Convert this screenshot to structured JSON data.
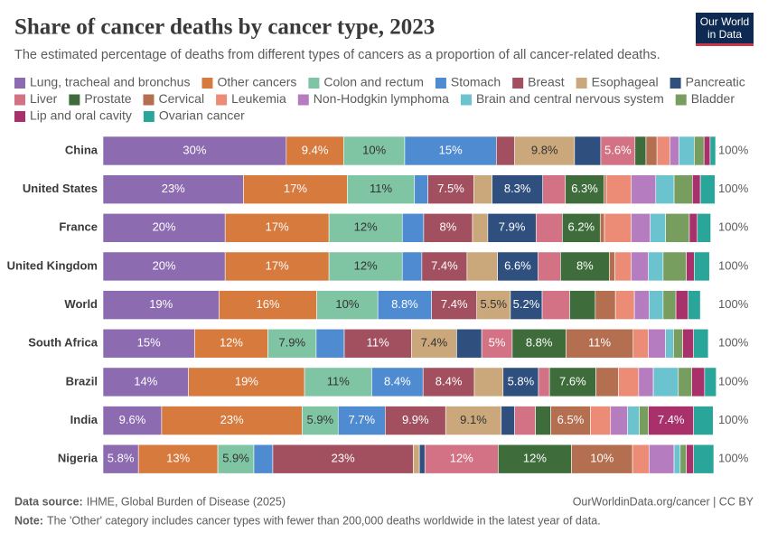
{
  "chart_data": {
    "type": "stacked-bar-100",
    "title": "Share of cancer deaths by cancer type, 2023",
    "subtitle": "The estimated percentage of deaths from different types of cancers as a proportion of all cancer-related deaths.",
    "logo": [
      "Our World",
      "in Data"
    ],
    "categories": [
      "China",
      "United States",
      "France",
      "United Kingdom",
      "World",
      "South Africa",
      "Brazil",
      "India",
      "Nigeria"
    ],
    "total_labels": [
      "100%",
      "100%",
      "100%",
      "100%",
      "100%",
      "100%",
      "100%",
      "100%",
      "100%"
    ],
    "xlim": [
      0,
      100
    ],
    "series": [
      {
        "name": "Lung, tracheal and bronchus",
        "color": "#8c6bb1",
        "values": [
          30,
          23,
          20,
          20,
          19,
          15,
          14,
          9.6,
          5.8
        ],
        "value_labels": [
          "30%",
          "23%",
          "20%",
          "20%",
          "19%",
          "15%",
          "14%",
          "9.6%",
          "5.8%"
        ]
      },
      {
        "name": "Other cancers",
        "color": "#d67a3e",
        "values": [
          9.4,
          17,
          17,
          17,
          16,
          12,
          19,
          23,
          13
        ],
        "value_labels": [
          "9.4%",
          "17%",
          "17%",
          "17%",
          "16%",
          "12%",
          "19%",
          "23%",
          "13%"
        ]
      },
      {
        "name": "Colon and rectum",
        "color": "#7fc4a3",
        "values": [
          10,
          11,
          12,
          12,
          10,
          7.9,
          11,
          5.9,
          5.9
        ],
        "value_labels": [
          "10%",
          "11%",
          "12%",
          "12%",
          "10%",
          "7.9%",
          "11%",
          "5.9%",
          "5.9%"
        ]
      },
      {
        "name": "Stomach",
        "color": "#4f8bd0",
        "values": [
          15,
          2.2,
          3.5,
          3.2,
          8.8,
          4.6,
          8.4,
          7.7,
          3.1
        ],
        "value_labels": [
          "15%",
          null,
          null,
          null,
          "8.8%",
          null,
          "8.4%",
          "7.7%",
          null
        ]
      },
      {
        "name": "Breast",
        "color": "#a2505f",
        "values": [
          3,
          7.5,
          8,
          7.4,
          7.4,
          11,
          8.4,
          9.9,
          23
        ],
        "value_labels": [
          null,
          "7.5%",
          "8%",
          "7.4%",
          "7.4%",
          "11%",
          "8.4%",
          "9.9%",
          "23%"
        ]
      },
      {
        "name": "Esophageal",
        "color": "#caa87c",
        "values": [
          9.8,
          3,
          2.5,
          5,
          5.5,
          7.4,
          4.7,
          9.1,
          1
        ],
        "value_labels": [
          "9.8%",
          null,
          null,
          null,
          "5.5%",
          "7.4%",
          null,
          "9.1%",
          null
        ]
      },
      {
        "name": "Pancreatic",
        "color": "#2f4f7f",
        "values": [
          4.3,
          8.3,
          7.9,
          6.6,
          5.2,
          4.1,
          5.8,
          2.2,
          0.9
        ],
        "value_labels": [
          null,
          "8.3%",
          "7.9%",
          "6.6%",
          "5.2%",
          null,
          "5.8%",
          null,
          null
        ]
      },
      {
        "name": "Liver",
        "color": "#d27284",
        "values": [
          5.6,
          3.7,
          4.3,
          3.7,
          4.5,
          5,
          1.8,
          3.4,
          12
        ],
        "value_labels": [
          "5.6%",
          null,
          null,
          null,
          null,
          "5%",
          null,
          null,
          "12%"
        ]
      },
      {
        "name": "Prostate",
        "color": "#3e6d3b",
        "values": [
          1.8,
          6.3,
          6.2,
          8,
          4.2,
          8.8,
          7.6,
          2.5,
          12
        ],
        "value_labels": [
          null,
          "6.3%",
          "6.2%",
          "8%",
          null,
          "8.8%",
          "7.6%",
          null,
          "12%"
        ]
      },
      {
        "name": "Cervical",
        "color": "#b36f4f",
        "values": [
          1.8,
          0.4,
          0.7,
          0.9,
          3.3,
          11,
          3.7,
          6.5,
          10
        ],
        "value_labels": [
          null,
          null,
          null,
          null,
          null,
          "11%",
          null,
          "6.5%",
          "10%"
        ]
      },
      {
        "name": "Leukemia",
        "color": "#ec8c77",
        "values": [
          2.1,
          4.1,
          4.4,
          2.7,
          3.1,
          2.5,
          3.3,
          3.3,
          2.7
        ]
      },
      {
        "name": "Non-Hodgkin lymphoma",
        "color": "#b57cc0",
        "values": [
          1.5,
          4,
          3.1,
          2.8,
          2.4,
          2.8,
          2.4,
          2.8,
          4.1
        ]
      },
      {
        "name": "Brain and central nervous system",
        "color": "#6cc3d0",
        "values": [
          2.5,
          3,
          2.5,
          2.4,
          2.3,
          1.3,
          4.1,
          1.9,
          1
        ]
      },
      {
        "name": "Bladder",
        "color": "#789e5f",
        "values": [
          1.6,
          3,
          3.9,
          3.8,
          2.1,
          1.5,
          2.2,
          1.5,
          1
        ]
      },
      {
        "name": "Lip and oral cavity",
        "color": "#a8316c",
        "values": [
          1,
          1.3,
          1.3,
          1.3,
          2,
          1.8,
          2.1,
          7.4,
          1.2
        ],
        "value_labels": [
          null,
          null,
          null,
          null,
          null,
          null,
          null,
          "7.4%",
          null
        ]
      },
      {
        "name": "Ovarian cancer",
        "color": "#2aa59a",
        "values": [
          0.9,
          2.4,
          2.2,
          2.5,
          2,
          2.4,
          1.9,
          3.2,
          3.3
        ]
      }
    ],
    "source_label": "Data source:",
    "source": "IHME, Global Burden of Disease (2025)",
    "url": "OurWorldinData.org/cancer | CC BY",
    "note_label": "Note:",
    "note": "The 'Other' category includes cancer types with fewer than 200,000 deaths worldwide in the latest year of data."
  }
}
